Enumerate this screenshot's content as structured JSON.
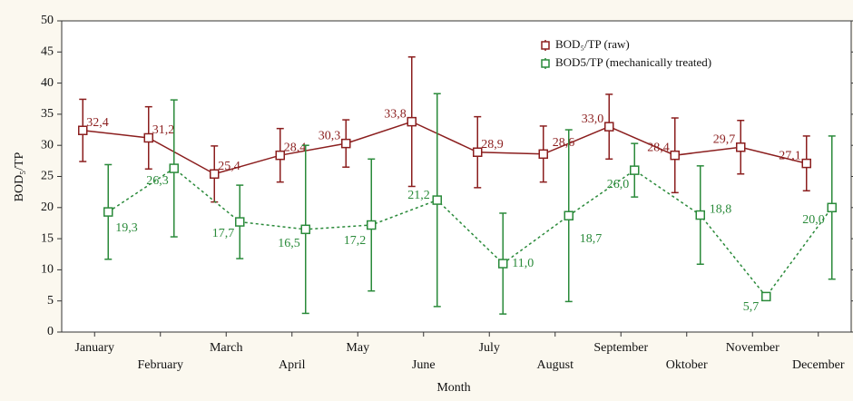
{
  "chart_data": {
    "type": "line-errorbar",
    "xlabel": "Month",
    "ylabel": "BOD₅/TP",
    "categories": [
      "January",
      "February",
      "March",
      "April",
      "May",
      "June",
      "July",
      "August",
      "September",
      "Oktober",
      "November",
      "December"
    ],
    "ylim": [
      0,
      50
    ],
    "yticks": [
      0,
      5,
      10,
      15,
      20,
      25,
      30,
      35,
      40,
      45,
      50
    ],
    "series": [
      {
        "name": "BOD₅/TP (raw)",
        "color": "#8b1e1e",
        "dash": "solid",
        "values": [
          32.4,
          31.2,
          25.4,
          28.4,
          30.3,
          33.8,
          28.9,
          28.6,
          33.0,
          28.4,
          29.7,
          27.1
        ],
        "value_labels": [
          "32,4",
          "31,2",
          "25,4",
          "28,4",
          "30,3",
          "33,8",
          "28,9",
          "28,6",
          "33,0",
          "28,4",
          "29,7",
          "27,1"
        ],
        "errors": [
          5.0,
          5.0,
          4.5,
          4.3,
          3.8,
          10.4,
          5.7,
          4.5,
          5.2,
          6.0,
          4.3,
          4.4
        ]
      },
      {
        "name": "BOD5/TP (mechanically treated)",
        "color": "#2a8a3a",
        "dash": "dashed",
        "values": [
          19.3,
          26.3,
          17.7,
          16.5,
          17.2,
          21.2,
          11.0,
          18.7,
          26.0,
          18.8,
          5.7,
          20.0
        ],
        "value_labels": [
          "19,3",
          "26,3",
          "17,7",
          "16,5",
          "17,2",
          "21,2",
          "11,0",
          "18,7",
          "26,0",
          "18,8",
          "5,7",
          "20,0"
        ],
        "errors": [
          7.6,
          11.0,
          5.9,
          13.5,
          10.6,
          17.1,
          8.1,
          13.8,
          4.3,
          7.9,
          0.4,
          11.5
        ]
      }
    ]
  }
}
